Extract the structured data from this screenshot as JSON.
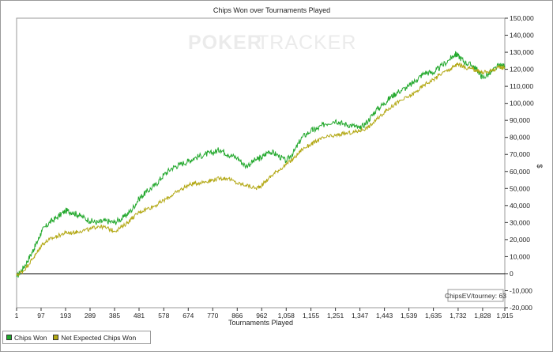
{
  "chart_data": {
    "type": "line",
    "title": "Chips Won over Tournaments Played",
    "xlabel": "Tournaments Played",
    "ylabel": "",
    "y_unit_symbol": "$",
    "watermark": {
      "part1": "POKER",
      "part2": "TRACKER"
    },
    "xlim": [
      1,
      1915
    ],
    "ylim": [
      -20000,
      150000
    ],
    "x_ticks": [
      1,
      97,
      193,
      289,
      385,
      481,
      578,
      674,
      770,
      866,
      962,
      1058,
      1155,
      1251,
      1347,
      1443,
      1539,
      1635,
      1732,
      1828,
      1915
    ],
    "x_tick_labels": [
      "1",
      "97",
      "193",
      "289",
      "385",
      "481",
      "578",
      "674",
      "770",
      "866",
      "962",
      "1,058",
      "1,155",
      "1,251",
      "1,347",
      "1,443",
      "1,539",
      "1,635",
      "1,732",
      "1,828",
      "1,915"
    ],
    "y_ticks": [
      -20000,
      -10000,
      0,
      10000,
      20000,
      30000,
      40000,
      50000,
      60000,
      70000,
      80000,
      90000,
      100000,
      110000,
      120000,
      130000,
      140000,
      150000
    ],
    "y_tick_labels": [
      "-20,000",
      "-10,000",
      "0",
      "10,000",
      "20,000",
      "30,000",
      "40,000",
      "50,000",
      "60,000",
      "70,000",
      "80,000",
      "90,000",
      "100,000",
      "110,000",
      "120,000",
      "130,000",
      "140,000",
      "150,000"
    ],
    "grid": false,
    "zero_line": true,
    "legend_position": "bottom-left",
    "annotation": "ChipsEV/tourney: 63",
    "series": [
      {
        "name": "Chips Won",
        "color": "#22a82c",
        "x": [
          1,
          30,
          60,
          80,
          100,
          130,
          160,
          193,
          220,
          250,
          289,
          320,
          350,
          385,
          420,
          450,
          481,
          510,
          545,
          578,
          610,
          640,
          674,
          700,
          740,
          770,
          800,
          830,
          866,
          900,
          940,
          962,
          990,
          1020,
          1058,
          1090,
          1120,
          1155,
          1180,
          1210,
          1251,
          1280,
          1320,
          1347,
          1380,
          1410,
          1443,
          1470,
          1500,
          1539,
          1570,
          1600,
          1635,
          1660,
          1700,
          1720,
          1732,
          1760,
          1790,
          1810,
          1828,
          1860,
          1890,
          1915
        ],
        "y": [
          -2000,
          4000,
          12000,
          18000,
          25000,
          30000,
          33000,
          37000,
          36000,
          34000,
          31000,
          30000,
          31000,
          30000,
          33000,
          37000,
          44000,
          48000,
          52000,
          58000,
          62000,
          64000,
          66000,
          68000,
          70000,
          71000,
          73000,
          70000,
          68000,
          63000,
          67000,
          68000,
          72000,
          70000,
          66000,
          72000,
          80000,
          84000,
          85000,
          88000,
          90000,
          88000,
          87000,
          85000,
          90000,
          96000,
          100000,
          104000,
          107000,
          110000,
          114000,
          118000,
          118000,
          121000,
          126000,
          129000,
          128000,
          124000,
          122000,
          119000,
          115000,
          118000,
          122000,
          122000
        ]
      },
      {
        "name": "Net Expected Chips Won",
        "color": "#b3a814",
        "x": [
          1,
          30,
          60,
          80,
          100,
          130,
          160,
          193,
          220,
          250,
          289,
          320,
          350,
          385,
          420,
          450,
          481,
          510,
          545,
          578,
          610,
          640,
          674,
          700,
          740,
          770,
          800,
          830,
          866,
          900,
          940,
          962,
          990,
          1020,
          1058,
          1090,
          1120,
          1155,
          1180,
          1210,
          1251,
          1280,
          1320,
          1347,
          1380,
          1410,
          1443,
          1470,
          1500,
          1539,
          1570,
          1600,
          1635,
          1660,
          1700,
          1720,
          1732,
          1760,
          1790,
          1810,
          1828,
          1860,
          1890,
          1915
        ],
        "y": [
          -1000,
          2000,
          8000,
          12000,
          17000,
          20000,
          22000,
          24000,
          24000,
          25000,
          26000,
          28000,
          27000,
          25000,
          28000,
          32000,
          36000,
          38000,
          40000,
          43000,
          46000,
          49000,
          52000,
          53000,
          54000,
          55000,
          56000,
          56000,
          53000,
          52000,
          50000,
          52000,
          56000,
          60000,
          64000,
          68000,
          73000,
          76000,
          78000,
          80000,
          81000,
          82000,
          83000,
          84000,
          86000,
          90000,
          95000,
          98000,
          101000,
          104000,
          107000,
          111000,
          114000,
          117000,
          120000,
          122000,
          123000,
          121000,
          120000,
          119000,
          118000,
          119000,
          121000,
          121000
        ]
      }
    ]
  }
}
